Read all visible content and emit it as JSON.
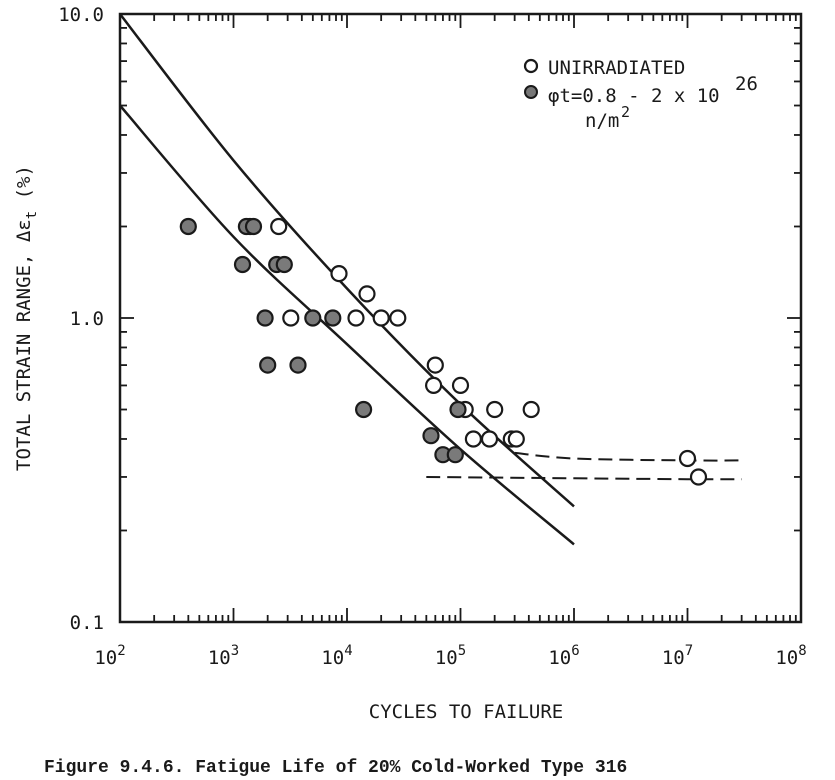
{
  "chart_data": {
    "type": "scatter",
    "caption": "Figure 9.4.6.  Fatigue Life of 20% Cold-Worked Type 316",
    "xlabel": "CYCLES TO FAILURE",
    "ylabel": "TOTAL STRAIN RANGE, Δε",
    "ylabel_sub": "t",
    "ylabel_unit": "(%)",
    "x_scale": "log",
    "y_scale": "log",
    "xlim": [
      100,
      100000000
    ],
    "ylim": [
      0.1,
      10
    ],
    "x_ticks": [
      {
        "value": 100,
        "base": "10",
        "exp": "2"
      },
      {
        "value": 1000,
        "base": "10",
        "exp": "3"
      },
      {
        "value": 10000,
        "base": "10",
        "exp": "4"
      },
      {
        "value": 100000,
        "base": "10",
        "exp": "5"
      },
      {
        "value": 1000000,
        "base": "10",
        "exp": "6"
      },
      {
        "value": 10000000,
        "base": "10",
        "exp": "7"
      },
      {
        "value": 100000000,
        "base": "10",
        "exp": "8"
      }
    ],
    "y_ticks": [
      {
        "value": 0.1,
        "label": "0.1"
      },
      {
        "value": 1,
        "label": "1.0"
      },
      {
        "value": 10,
        "label": "10.0"
      }
    ],
    "grid": false,
    "legend_position": "top-right",
    "legend": {
      "unirradiated_label": "UNIRRADIATED",
      "irradiated_label_main": "φt=0.8 - 2 x 10",
      "irradiated_label_exp": "26",
      "irradiated_label_unit": "n/m",
      "irradiated_label_unit_exp": "2"
    },
    "series": [
      {
        "name": "UNIRRADIATED",
        "marker": "open-circle",
        "points": [
          [
            1400,
            2.0
          ],
          [
            2500,
            2.0
          ],
          [
            3200,
            1.0
          ],
          [
            8500,
            1.4
          ],
          [
            12000,
            1.0
          ],
          [
            15000,
            1.2
          ],
          [
            20000,
            1.0
          ],
          [
            28000,
            1.0
          ],
          [
            58000,
            0.6
          ],
          [
            60000,
            0.7
          ],
          [
            100000,
            0.6
          ],
          [
            110000,
            0.5
          ],
          [
            130000,
            0.4
          ],
          [
            180000,
            0.4
          ],
          [
            200000,
            0.5
          ],
          [
            280000,
            0.4
          ],
          [
            310000,
            0.4
          ],
          [
            420000,
            0.5
          ],
          [
            10000000,
            0.345
          ],
          [
            12500000,
            0.3
          ]
        ]
      },
      {
        "name": "φt=0.8 - 2 x 10^26 n/m^2",
        "marker": "filled-circle",
        "points": [
          [
            400,
            2.0
          ],
          [
            1300,
            2.0
          ],
          [
            1500,
            2.0
          ],
          [
            1200,
            1.5
          ],
          [
            2400,
            1.5
          ],
          [
            2800,
            1.5
          ],
          [
            1900,
            1.0
          ],
          [
            5000,
            1.0
          ],
          [
            7500,
            1.0
          ],
          [
            2000,
            0.7
          ],
          [
            3700,
            0.7
          ],
          [
            14000,
            0.5
          ],
          [
            55000,
            0.41
          ],
          [
            70000,
            0.355
          ],
          [
            90000,
            0.355
          ],
          [
            95000,
            0.5
          ]
        ]
      }
    ],
    "fit_lines": [
      {
        "name": "unirradiated-fit",
        "style": "solid",
        "points": [
          [
            100,
            10
          ],
          [
            1000,
            3.3
          ],
          [
            10000,
            1.25
          ],
          [
            100000,
            0.52
          ],
          [
            1000000,
            0.24
          ]
        ]
      },
      {
        "name": "irradiated-fit",
        "style": "solid",
        "points": [
          [
            100,
            5.0
          ],
          [
            1000,
            1.85
          ],
          [
            10000,
            0.82
          ],
          [
            100000,
            0.37
          ],
          [
            1000000,
            0.18
          ]
        ]
      },
      {
        "name": "unirradiated-endurance",
        "style": "dashed",
        "points": [
          [
            300000,
            0.36
          ],
          [
            1000000,
            0.345
          ],
          [
            10000000,
            0.34
          ],
          [
            30000000,
            0.34
          ]
        ]
      },
      {
        "name": "irradiated-endurance",
        "style": "dashed",
        "points": [
          [
            50000,
            0.3
          ],
          [
            1000000,
            0.297
          ],
          [
            10000000,
            0.295
          ],
          [
            30000000,
            0.295
          ]
        ]
      }
    ]
  }
}
